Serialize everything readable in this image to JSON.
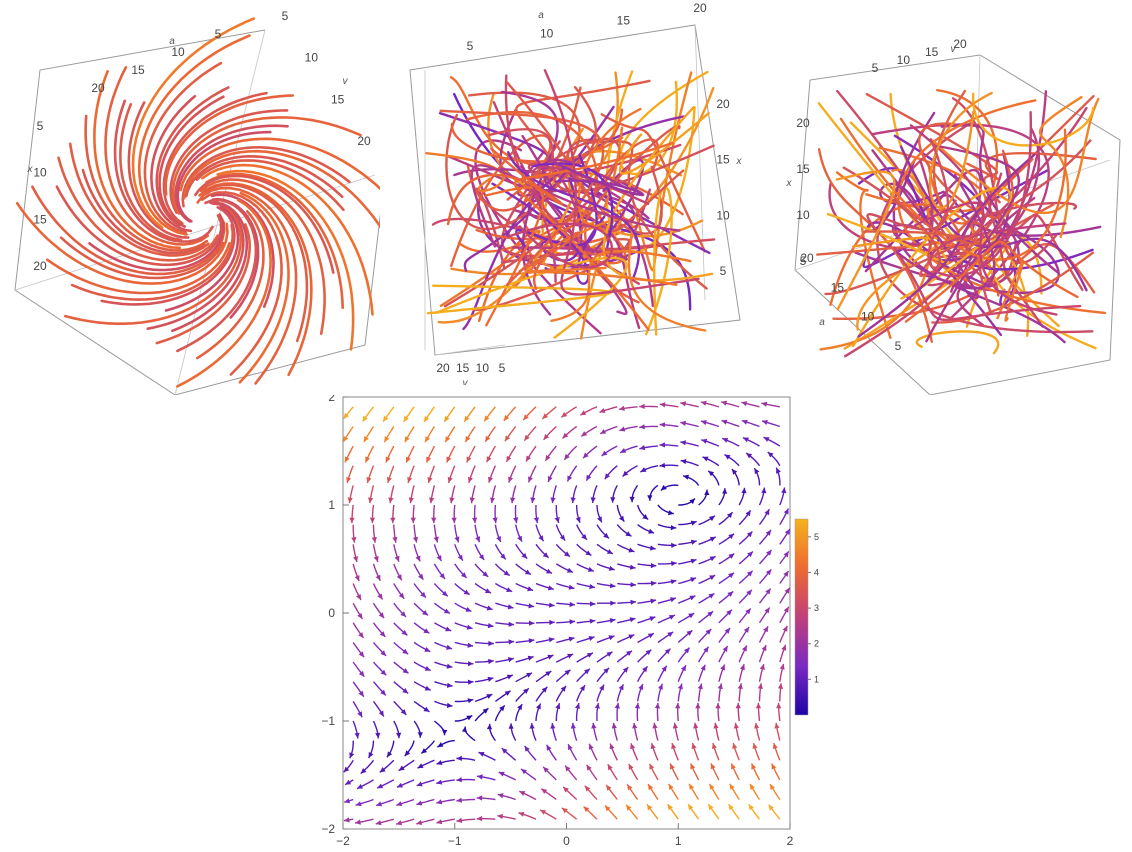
{
  "chart_data": [
    {
      "type": "line",
      "name": "stream-3d-left",
      "axes": [
        {
          "name": "a",
          "ticks": [
            "5",
            "10",
            "15",
            "20"
          ]
        },
        {
          "name": "v",
          "ticks": [
            "5",
            "10",
            "15",
            "20"
          ]
        },
        {
          "name": "x",
          "ticks": [
            "5",
            "10",
            "15",
            "20"
          ]
        }
      ]
    },
    {
      "type": "line",
      "name": "stream-3d-middle",
      "axes": [
        {
          "name": "a",
          "ticks": [
            "5",
            "10",
            "15",
            "20"
          ]
        },
        {
          "name": "x",
          "ticks": [
            "5",
            "10",
            "15",
            "20"
          ]
        },
        {
          "name": "v",
          "ticks": [
            "20",
            "15",
            "10",
            "5"
          ]
        }
      ]
    },
    {
      "type": "line",
      "name": "stream-3d-right",
      "axes": [
        {
          "name": "v",
          "ticks": [
            "5",
            "10",
            "15",
            "20"
          ]
        },
        {
          "name": "x",
          "ticks": [
            "5",
            "10",
            "15",
            "20"
          ]
        },
        {
          "name": "a",
          "ticks": [
            "5",
            "10",
            "15",
            "20"
          ]
        }
      ]
    },
    {
      "type": "line",
      "name": "stream-2d",
      "xlim": [
        -2,
        2
      ],
      "ylim": [
        -2,
        2
      ],
      "xticks": [
        -2,
        -1,
        0,
        1,
        2
      ],
      "yticks": [
        -2,
        -1,
        0,
        1,
        2
      ],
      "colorbar": {
        "min": 0,
        "max": 5.5,
        "ticks": [
          1,
          2,
          3,
          4,
          5
        ]
      },
      "colors": [
        "#1d04a8",
        "#7b29c2",
        "#c0407a",
        "#ee6a30",
        "#f6b21c"
      ]
    }
  ]
}
